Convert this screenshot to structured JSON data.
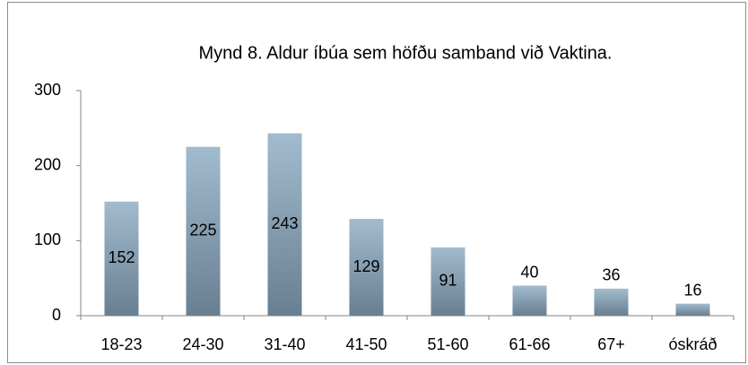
{
  "chart_data": {
    "type": "bar",
    "title": "Mynd 8. Aldur íbúa sem höfðu samband við Vaktina.",
    "categories": [
      "18-23",
      "24-30",
      "31-40",
      "41-50",
      "51-60",
      "61-66",
      "67+",
      "óskráð"
    ],
    "values": [
      152,
      225,
      243,
      129,
      91,
      40,
      36,
      16
    ],
    "color": "#8aa3b6",
    "ylim": [
      0,
      300
    ],
    "yticks": [
      0,
      100,
      200,
      300
    ],
    "grid": false
  }
}
